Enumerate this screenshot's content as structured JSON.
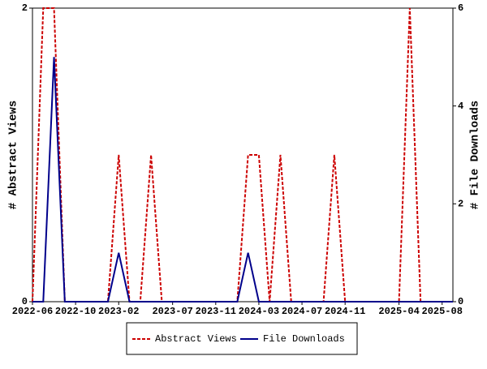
{
  "chart_data": {
    "type": "line",
    "x": [
      "2022-06",
      "2022-07",
      "2022-08",
      "2022-09",
      "2022-10",
      "2022-11",
      "2022-12",
      "2023-01",
      "2023-02",
      "2023-03",
      "2023-04",
      "2023-05",
      "2023-06",
      "2023-07",
      "2023-08",
      "2023-09",
      "2023-10",
      "2023-11",
      "2023-12",
      "2024-01",
      "2024-02",
      "2024-03",
      "2024-04",
      "2024-05",
      "2024-06",
      "2024-07",
      "2024-08",
      "2024-09",
      "2024-10",
      "2024-11",
      "2024-12",
      "2025-01",
      "2025-02",
      "2025-03",
      "2025-04",
      "2025-05",
      "2025-06",
      "2025-07",
      "2025-08",
      "2025-09"
    ],
    "series": [
      {
        "name": "Abstract Views",
        "color": "#cc0000",
        "dashed": true,
        "values": [
          0,
          2,
          2,
          0,
          0,
          0,
          0,
          0,
          1,
          0,
          0,
          1,
          0,
          0,
          0,
          0,
          0,
          0,
          0,
          0,
          1,
          1,
          0,
          1,
          0,
          0,
          0,
          0,
          1,
          0,
          0,
          0,
          0,
          0,
          0,
          2,
          0,
          0,
          0,
          0
        ]
      },
      {
        "name": "File Downloads",
        "color": "#00008b",
        "axis": "y2",
        "values": [
          0,
          0,
          5,
          0,
          0,
          0,
          0,
          0,
          1,
          0,
          0,
          0,
          0,
          0,
          0,
          0,
          0,
          0,
          0,
          0,
          1,
          0,
          0,
          0,
          0,
          0,
          0,
          0,
          0,
          0,
          0,
          0,
          0,
          0,
          0,
          0,
          0,
          0,
          0,
          0
        ]
      }
    ],
    "xticks": [
      "2022-06",
      "2022-10",
      "2023-02",
      "2023-07",
      "2023-11",
      "2024-03",
      "2024-07",
      "2024-11",
      "2025-04",
      "2025-08"
    ],
    "ylabel": "# Abstract Views",
    "y2label": "# File Downloads",
    "ylim": [
      0,
      2
    ],
    "yticks": [
      0,
      2
    ],
    "y2lim": [
      0,
      6
    ],
    "y2ticks": [
      0,
      2,
      4,
      6
    ],
    "legend": "bottom"
  }
}
